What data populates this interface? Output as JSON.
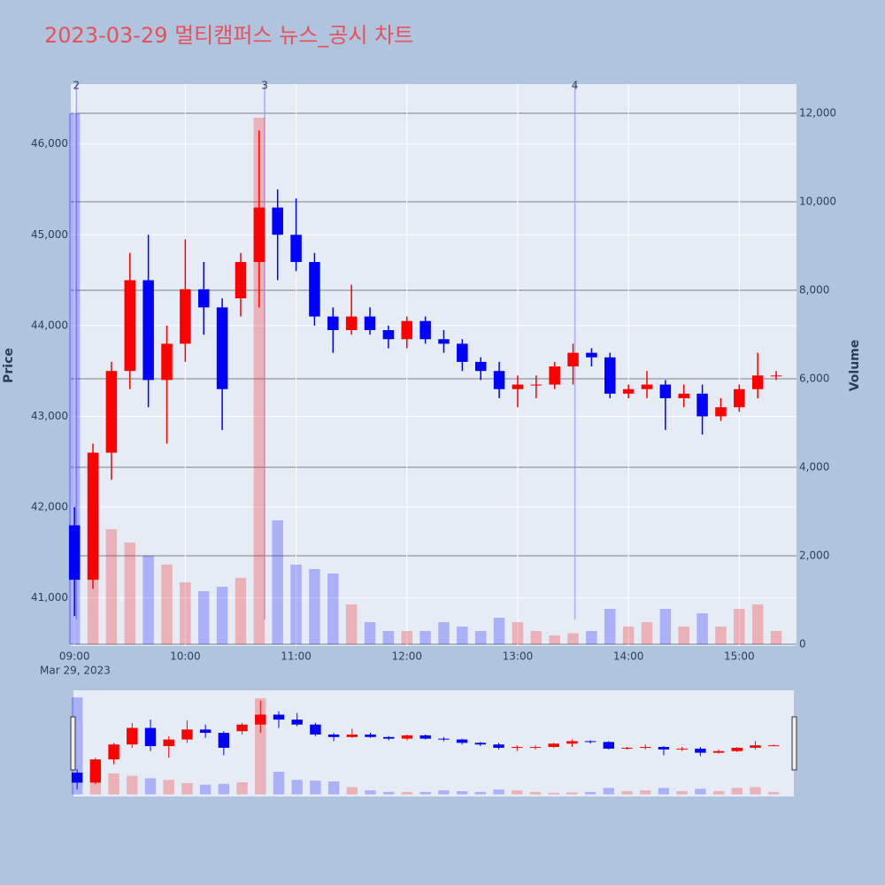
{
  "chart_data": {
    "type": "candlestick",
    "title": "2023-03-29 멀티캠퍼스 뉴스_공시 차트",
    "y_label": "Price",
    "y2_label": "Volume",
    "x_date_label": "Mar 29, 2023",
    "increasing_color": "#ff0000",
    "decreasing_color": "#0000ff",
    "x": [
      "09:00",
      "09:10",
      "09:20",
      "09:30",
      "09:40",
      "09:50",
      "10:00",
      "10:10",
      "10:20",
      "10:30",
      "10:40",
      "10:50",
      "11:00",
      "11:10",
      "11:20",
      "11:30",
      "11:40",
      "11:50",
      "12:00",
      "12:10",
      "12:20",
      "12:30",
      "12:40",
      "12:50",
      "13:00",
      "13:10",
      "13:20",
      "13:30",
      "13:40",
      "13:50",
      "14:00",
      "14:10",
      "14:20",
      "14:30",
      "14:40",
      "14:50",
      "15:00",
      "15:10",
      "15:20"
    ],
    "open": [
      41800,
      41200,
      42600,
      43500,
      44500,
      43400,
      43800,
      44400,
      44200,
      44300,
      44700,
      45300,
      45000,
      44700,
      44100,
      43950,
      44100,
      43950,
      43850,
      44050,
      43850,
      43800,
      43600,
      43500,
      43300,
      43350,
      43350,
      43550,
      43700,
      43650,
      43250,
      43300,
      43350,
      43200,
      43250,
      43000,
      43100,
      43300,
      43450
    ],
    "high": [
      42000,
      42700,
      43600,
      44800,
      45000,
      44000,
      44950,
      44700,
      44300,
      44800,
      46150,
      45500,
      45400,
      44800,
      44200,
      44450,
      44200,
      44000,
      44100,
      44100,
      43950,
      43850,
      43650,
      43600,
      43450,
      43450,
      43600,
      43800,
      43750,
      43700,
      43350,
      43500,
      43400,
      43350,
      43350,
      43200,
      43350,
      43700,
      43500
    ],
    "low": [
      40800,
      41100,
      42300,
      43300,
      43100,
      42700,
      43600,
      43900,
      42850,
      44100,
      44200,
      44500,
      44600,
      44000,
      43700,
      43900,
      43900,
      43750,
      43750,
      43800,
      43700,
      43500,
      43400,
      43200,
      43100,
      43200,
      43300,
      43350,
      43550,
      43200,
      43200,
      43200,
      42850,
      43100,
      42800,
      42950,
      43050,
      43200,
      43400
    ],
    "close": [
      41200,
      42600,
      43500,
      44500,
      43400,
      43800,
      44400,
      44200,
      43300,
      44700,
      45300,
      45000,
      44700,
      44100,
      43950,
      44100,
      43950,
      43850,
      44050,
      43850,
      43800,
      43600,
      43500,
      43300,
      43350,
      43350,
      43550,
      43700,
      43650,
      43250,
      43300,
      43350,
      43200,
      43250,
      43000,
      43100,
      43300,
      43450,
      43450
    ],
    "volume": [
      12000,
      3200,
      2600,
      2300,
      2000,
      1800,
      1400,
      1200,
      1300,
      1500,
      11900,
      2800,
      1800,
      1700,
      1600,
      900,
      500,
      300,
      300,
      300,
      500,
      400,
      300,
      600,
      500,
      300,
      200,
      250,
      300,
      800,
      400,
      500,
      800,
      400,
      700,
      400,
      800,
      900,
      300
    ],
    "xlim": [
      "08:58",
      "15:31"
    ],
    "xticks": [
      "09:00",
      "10:00",
      "11:00",
      "12:00",
      "13:00",
      "14:00",
      "15:00"
    ],
    "ylim": [
      40470,
      46660
    ],
    "yticks": [
      {
        "value": 41000,
        "label": "41,000"
      },
      {
        "value": 42000,
        "label": "42,000"
      },
      {
        "value": 43000,
        "label": "43,000"
      },
      {
        "value": 44000,
        "label": "44,000"
      },
      {
        "value": 45000,
        "label": "45,000"
      },
      {
        "value": 46000,
        "label": "46,000"
      }
    ],
    "y2lim": [
      -40,
      12660
    ],
    "y2ticks": [
      0,
      {
        "value": 2000,
        "label": "2,000"
      },
      {
        "value": 4000,
        "label": "4,000"
      },
      {
        "value": 6000,
        "label": "6,000"
      },
      {
        "value": 8000,
        "label": "8,000"
      },
      {
        "value": 10000,
        "label": "10,000"
      },
      {
        "value": 12000,
        "label": "12,000"
      }
    ],
    "annotations": [
      {
        "x": "09:01",
        "text": "2"
      },
      {
        "x": "10:43",
        "text": "3"
      },
      {
        "x": "13:31",
        "text": "4"
      }
    ],
    "grid": true
  }
}
